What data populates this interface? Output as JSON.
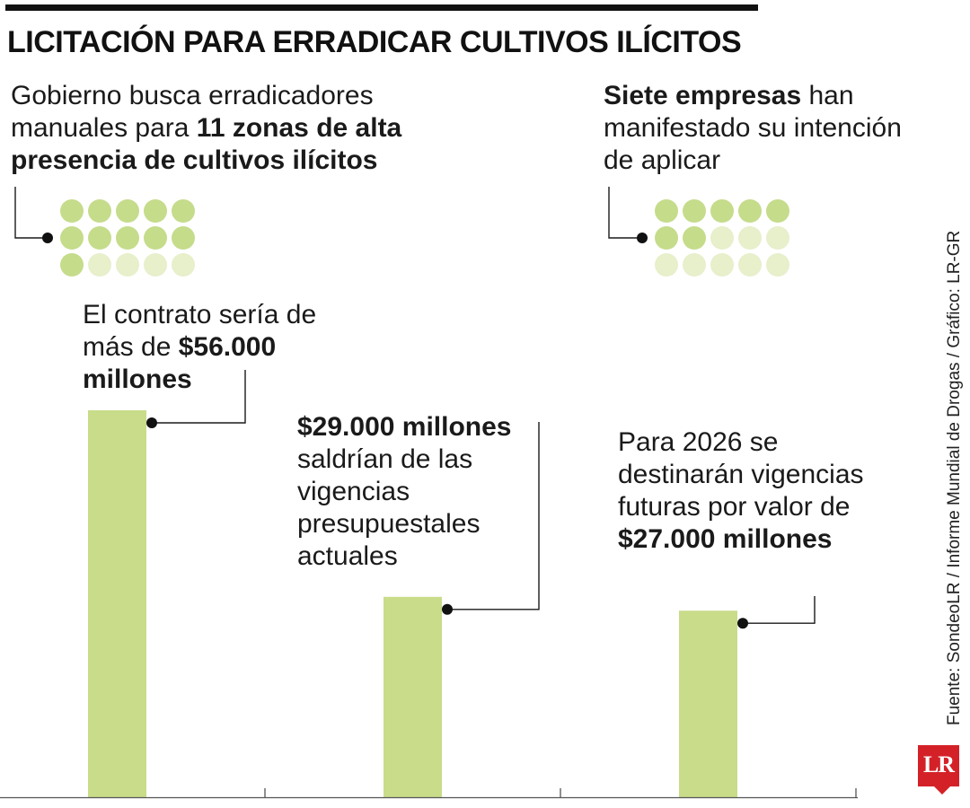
{
  "title": "LICITACIÓN PARA ERRADICAR CULTIVOS ILÍCITOS",
  "notes": {
    "zonas_pre": "Gobierno busca erradicadores manuales para ",
    "zonas_bold": "11 zonas de alta presencia de cultivos ilícitos",
    "empresas_bold": "Siete empresas",
    "empresas_post": " han manifestado su intención de aplicar"
  },
  "annotations": [
    {
      "pre": "El contrato sería de más de ",
      "bold": "$56.000 millones",
      "post": ""
    },
    {
      "pre": "",
      "bold": "$29.000 millones",
      "post": " saldrían de las vigencias presupuestales actuales"
    },
    {
      "pre": "Para 2026 se destinarán vigencias futuras por valor de ",
      "bold": "$27.000 millones",
      "post": ""
    }
  ],
  "source": "Fuente: SondeoLR / Informe Mundial de Drogas / Gráfico: LR-GR",
  "logo": "LR",
  "colors": {
    "bar": "#c8dc89",
    "dot_filled": "#c5dc8b",
    "dot_empty": "#e7efcb",
    "text": "#1a1a1a"
  },
  "chart_data": [
    {
      "type": "bar",
      "categories": [
        "",
        "",
        ""
      ],
      "values": [
        56000,
        29000,
        27000
      ],
      "unit": "millones"
    },
    {
      "type": "dot-matrix",
      "filled": 11,
      "total": 15
    },
    {
      "type": "dot-matrix",
      "filled": 7,
      "total": 15
    }
  ]
}
